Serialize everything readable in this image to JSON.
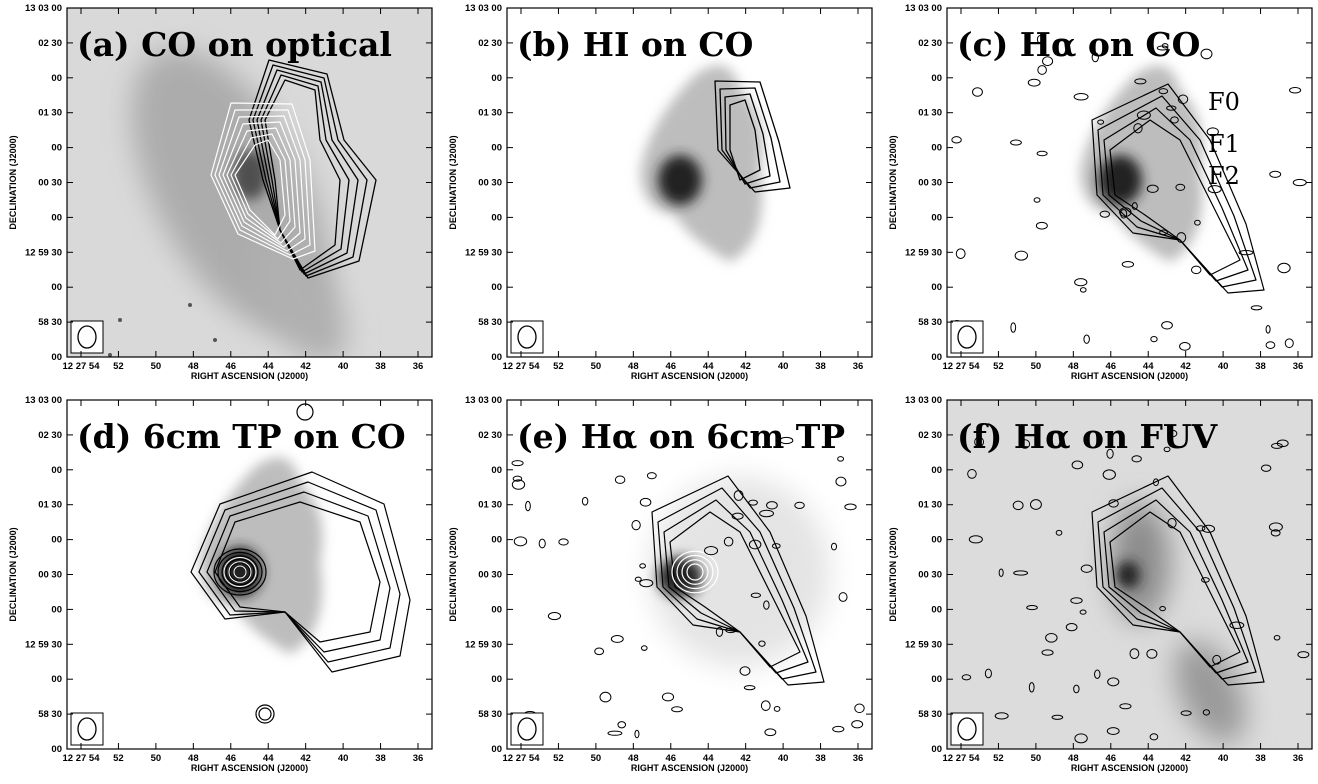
{
  "figure": {
    "panels": [
      {
        "id": "a",
        "label": "(a) CO on optical",
        "background": "optical"
      },
      {
        "id": "b",
        "label": "(b) HI on CO",
        "background": "co"
      },
      {
        "id": "c",
        "label": "(c) Hα on CO",
        "background": "co"
      },
      {
        "id": "d",
        "label": "(d) 6cm TP on CO",
        "background": "co"
      },
      {
        "id": "e",
        "label": "(e) Hα on 6cm TP",
        "background": "tp"
      },
      {
        "id": "f",
        "label": "(f) Hα on FUV",
        "background": "fuv"
      }
    ],
    "feature_labels": [
      "F0",
      "F1",
      "F2"
    ],
    "x_axis_title": "RIGHT ASCENSION (J2000)",
    "y_axis_title": "DECLINATION (J2000)",
    "x_ticks": [
      "12 27 54",
      "52",
      "50",
      "48",
      "46",
      "44",
      "42",
      "40",
      "38",
      "36"
    ],
    "y_ticks": [
      "13 03 00",
      "02 30",
      "00",
      "01 30",
      "00",
      "00 30",
      "00",
      "12 59 30",
      "00",
      "58 30",
      "00"
    ]
  }
}
